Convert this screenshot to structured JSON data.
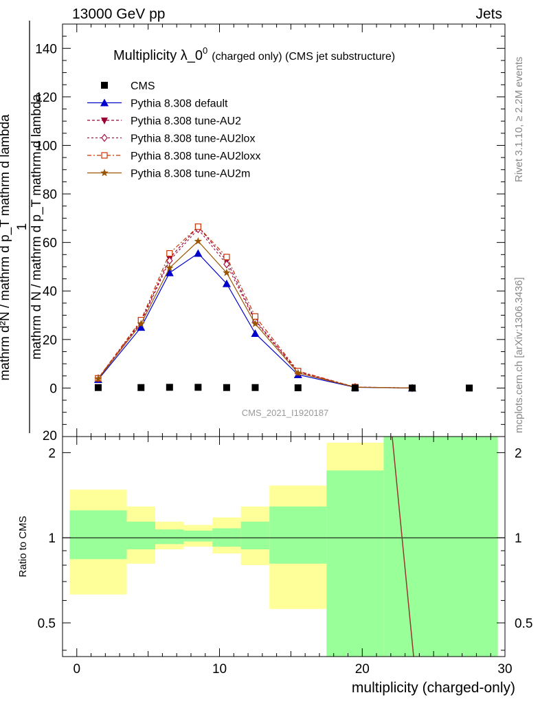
{
  "header": {
    "left": "13000 GeV pp",
    "right": "Jets"
  },
  "side_labels": {
    "rivet": "Rivet 3.1.10, ≥ 2.2M events",
    "mcplots": "mcplots.cern.ch [arXiv:1306.3436]"
  },
  "chart_data": [
    {
      "type": "line",
      "title": "Multiplicity λ_0⁰",
      "title_main": "Multiplicity λ_0",
      "title_sup": "0",
      "title_small": "(charged only) (CMS jet substructure)",
      "ylabel_top": "mathrm d²N",
      "ylabel_bottom": "mathrm d N / mathrm d p_T mathrm d lambda",
      "ylabel_one": "1",
      "ylabel_denom": "mathrm d p_T mathrm d lambda",
      "ylabel_numer_denom": "mathrm d p_T mathrm d lambda",
      "ylabel_full_top": "mathrm d²N / mathrm d p_T mathrm d lambda",
      "analysis_tag": "CMS_2021_I1920187",
      "xlim": [
        -1,
        30
      ],
      "ylim": [
        -20,
        150
      ],
      "yticks": [
        0,
        20,
        40,
        60,
        80,
        100,
        120,
        140
      ],
      "ytick_labels": [
        "0",
        "20",
        "40",
        "60",
        "80",
        "100",
        "120",
        "140"
      ],
      "bottom_clipped_label": "20",
      "legend": [
        {
          "name": "CMS",
          "color": "#000000",
          "marker": "square"
        },
        {
          "name": "Pythia 8.308 default",
          "color": "#0000cc",
          "marker": "triangle"
        },
        {
          "name": "Pythia 8.308 tune-AU2",
          "color": "#990033",
          "marker": "triangle-down"
        },
        {
          "name": "Pythia 8.308 tune-AU2lox",
          "color": "#aa1144",
          "marker": "diamond"
        },
        {
          "name": "Pythia 8.308 tune-AU2loxx",
          "color": "#cc3300",
          "marker": "open-square"
        },
        {
          "name": "Pythia 8.308 tune-AU2m",
          "color": "#995500",
          "marker": "star"
        }
      ],
      "data": {
        "x": [
          1.5,
          4.5,
          6.5,
          8.5,
          10.5,
          12.5,
          15.5,
          19.5,
          23.5,
          27.5
        ],
        "y": [
          0.2,
          0.2,
          0.3,
          0.3,
          0.2,
          0.2,
          0.1,
          0.02,
          0.0,
          0.0
        ]
      },
      "series": [
        {
          "name": "Pythia 8.308 default",
          "x": [
            1.5,
            4.5,
            6.5,
            8.5,
            10.5,
            12.5,
            15.5,
            19.5,
            23.5
          ],
          "y": [
            3.5,
            25.0,
            47.5,
            55.5,
            43.0,
            22.5,
            5.5,
            0.3,
            0.0
          ]
        },
        {
          "name": "Pythia 8.308 tune-AU2",
          "x": [
            1.5,
            4.5,
            6.5,
            8.5,
            10.5,
            12.5,
            15.5,
            19.5,
            23.5
          ],
          "y": [
            4.0,
            27.5,
            53.5,
            66.5,
            52.5,
            28.0,
            6.8,
            0.4,
            0.0
          ]
        },
        {
          "name": "Pythia 8.308 tune-AU2lox",
          "x": [
            1.5,
            4.5,
            6.5,
            8.5,
            10.5,
            12.5,
            15.5,
            19.5,
            23.5
          ],
          "y": [
            4.0,
            27.0,
            52.5,
            65.5,
            51.0,
            27.5,
            6.6,
            0.4,
            0.0
          ]
        },
        {
          "name": "Pythia 8.308 tune-AU2loxx",
          "x": [
            1.5,
            4.5,
            6.5,
            8.5,
            10.5,
            12.5,
            15.5,
            19.5,
            23.5
          ],
          "y": [
            4.0,
            28.0,
            55.5,
            66.5,
            54.0,
            29.5,
            7.0,
            0.4,
            0.0
          ]
        },
        {
          "name": "Pythia 8.308 tune-AU2m",
          "x": [
            1.5,
            4.5,
            6.5,
            8.5,
            10.5,
            12.5,
            15.5,
            19.5,
            23.5
          ],
          "y": [
            3.8,
            26.5,
            49.5,
            60.5,
            47.5,
            26.5,
            6.2,
            0.35,
            0.0
          ]
        }
      ]
    },
    {
      "type": "area",
      "ylabel": "Ratio to CMS",
      "xlabel": "multiplicity (charged-only)",
      "xlim": [
        -1,
        30
      ],
      "ylim": [
        0.38,
        2.28
      ],
      "xticks": [
        0,
        10,
        20,
        30
      ],
      "xtick_labels": [
        "0",
        "10",
        "20",
        "30"
      ],
      "yticks": [
        0.5,
        1,
        2
      ],
      "ytick_labels": [
        "0.5",
        "1",
        "2"
      ],
      "bins": [
        {
          "x0": -0.5,
          "x1": 3.5,
          "stat_lo": 0.84,
          "stat_hi": 1.25,
          "tot_lo": 0.63,
          "tot_hi": 1.48
        },
        {
          "x0": 3.5,
          "x1": 5.5,
          "stat_lo": 0.91,
          "stat_hi": 1.14,
          "tot_lo": 0.81,
          "tot_hi": 1.29
        },
        {
          "x0": 5.5,
          "x1": 7.5,
          "stat_lo": 0.95,
          "stat_hi": 1.07,
          "tot_lo": 0.91,
          "tot_hi": 1.14
        },
        {
          "x0": 7.5,
          "x1": 9.5,
          "stat_lo": 0.97,
          "stat_hi": 1.06,
          "tot_lo": 0.93,
          "tot_hi": 1.11
        },
        {
          "x0": 9.5,
          "x1": 11.5,
          "stat_lo": 0.93,
          "stat_hi": 1.08,
          "tot_lo": 0.88,
          "tot_hi": 1.18
        },
        {
          "x0": 11.5,
          "x1": 13.5,
          "stat_lo": 0.91,
          "stat_hi": 1.14,
          "tot_lo": 0.8,
          "tot_hi": 1.29
        },
        {
          "x0": 13.5,
          "x1": 17.5,
          "stat_lo": 0.81,
          "stat_hi": 1.29,
          "tot_lo": 0.56,
          "tot_hi": 1.53
        },
        {
          "x0": 17.5,
          "x1": 21.5,
          "stat_lo": 0.38,
          "stat_hi": 1.73,
          "tot_lo": 0.38,
          "tot_hi": 2.17
        },
        {
          "x0": 21.5,
          "x1": 29.5,
          "stat_lo": 0.38,
          "stat_hi": 2.28,
          "tot_lo": 0.38,
          "tot_hi": 2.28
        }
      ],
      "band_colors": {
        "stat": "#99ff99",
        "total": "#ffff99"
      },
      "ratio_line": {
        "x": [
          22.1,
          23.6
        ],
        "y": [
          2.28,
          0.38
        ],
        "color": "#993333"
      }
    }
  ]
}
